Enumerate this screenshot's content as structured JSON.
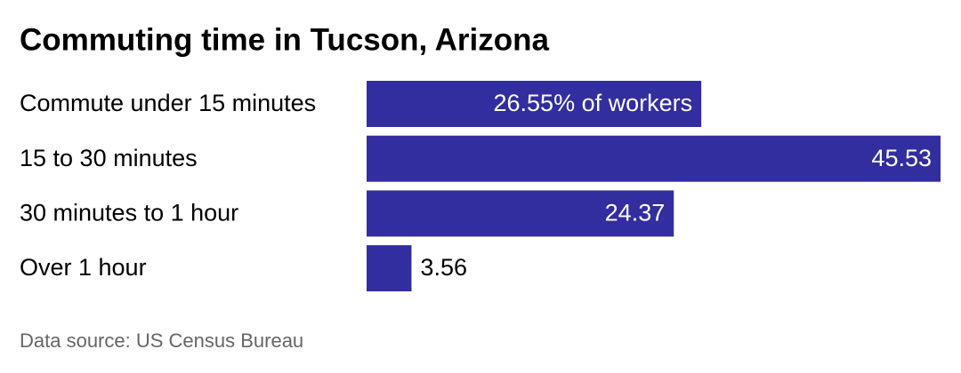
{
  "chart_data": {
    "type": "bar",
    "orientation": "horizontal",
    "title": "Commuting time in Tucson, Arizona",
    "categories": [
      "Commute under 15 minutes",
      "15 to 30 minutes",
      "30 minutes to 1 hour",
      "Over 1 hour"
    ],
    "values": [
      26.55,
      45.53,
      24.37,
      3.56
    ],
    "value_labels": [
      "26.55% of workers",
      "45.53",
      "24.37",
      "3.56"
    ],
    "color": "#332e9f",
    "source": "Data source: US Census Bureau"
  }
}
